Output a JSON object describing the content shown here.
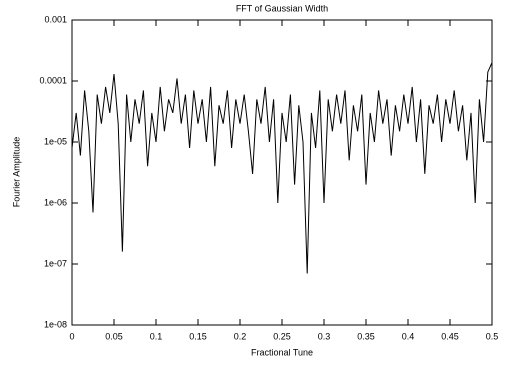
{
  "chart_data": {
    "type": "line",
    "title": "FFT of Gaussian Width",
    "xlabel": "Fractional Tune",
    "ylabel": "Fourier Amplitude",
    "log_y": true,
    "x": [
      0,
      0.005,
      0.01,
      0.015,
      0.02,
      0.025,
      0.03,
      0.035,
      0.04,
      0.045,
      0.05,
      0.055,
      0.06,
      0.065,
      0.07,
      0.075,
      0.08,
      0.085,
      0.09,
      0.095,
      0.1,
      0.105,
      0.11,
      0.115,
      0.12,
      0.125,
      0.13,
      0.135,
      0.14,
      0.145,
      0.15,
      0.155,
      0.16,
      0.165,
      0.17,
      0.175,
      0.18,
      0.185,
      0.19,
      0.195,
      0.2,
      0.205,
      0.21,
      0.215,
      0.22,
      0.225,
      0.23,
      0.235,
      0.24,
      0.245,
      0.25,
      0.255,
      0.26,
      0.265,
      0.27,
      0.275,
      0.28,
      0.285,
      0.29,
      0.295,
      0.3,
      0.305,
      0.31,
      0.315,
      0.32,
      0.325,
      0.33,
      0.335,
      0.34,
      0.345,
      0.35,
      0.355,
      0.36,
      0.365,
      0.37,
      0.375,
      0.38,
      0.385,
      0.39,
      0.395,
      0.4,
      0.405,
      0.41,
      0.415,
      0.42,
      0.425,
      0.43,
      0.435,
      0.44,
      0.445,
      0.45,
      0.455,
      0.46,
      0.465,
      0.47,
      0.475,
      0.48,
      0.485,
      0.49,
      0.495,
      0.5
    ],
    "series": [
      {
        "color": "#000000",
        "values": [
          8e-06,
          3e-05,
          6e-06,
          7e-05,
          1.5e-05,
          7e-07,
          6e-05,
          2e-05,
          8e-05,
          3e-05,
          0.00013,
          2e-05,
          1.6e-07,
          6e-05,
          1e-05,
          5e-05,
          2e-05,
          7e-05,
          4e-06,
          3e-05,
          1e-05,
          8e-05,
          1.5e-05,
          5e-05,
          3e-05,
          0.00011,
          2e-05,
          6e-05,
          8e-06,
          7e-05,
          2e-05,
          5e-05,
          1e-05,
          8e-05,
          4e-06,
          4e-05,
          2e-05,
          7e-05,
          8e-06,
          5e-05,
          2e-05,
          6e-05,
          1.5e-05,
          3e-06,
          5e-05,
          2e-05,
          8e-05,
          1e-05,
          5e-05,
          1e-06,
          3e-05,
          1e-05,
          6e-05,
          2e-06,
          4e-05,
          1e-05,
          7e-08,
          3e-05,
          8e-06,
          7e-05,
          1e-06,
          5e-05,
          1.5e-05,
          6e-05,
          2e-05,
          7e-05,
          5e-06,
          4e-05,
          1.5e-05,
          6e-05,
          2e-06,
          3e-05,
          1e-05,
          7e-05,
          2e-05,
          5e-05,
          6e-06,
          4e-05,
          1.5e-05,
          6e-05,
          2e-05,
          8e-05,
          1e-05,
          5e-05,
          3e-06,
          4e-05,
          2e-05,
          6e-05,
          1e-05,
          5e-05,
          2e-05,
          7e-05,
          1.5e-05,
          4e-05,
          5e-06,
          3e-05,
          1e-06,
          5e-05,
          1e-05,
          0.00014,
          0.0002
        ]
      }
    ],
    "xlim": [
      0,
      0.5
    ],
    "xticks": [
      0,
      0.05,
      0.1,
      0.15,
      0.2,
      0.25,
      0.3,
      0.35,
      0.4,
      0.45,
      0.5
    ],
    "ylim": [
      1e-08,
      0.001
    ],
    "yticks": [
      {
        "value": 1e-08,
        "label": "1e-08"
      },
      {
        "value": 1e-07,
        "label": "1e-07"
      },
      {
        "value": 1e-06,
        "label": "1e-06"
      },
      {
        "value": 1e-05,
        "label": "1e-05"
      },
      0.0001,
      0.001
    ]
  }
}
